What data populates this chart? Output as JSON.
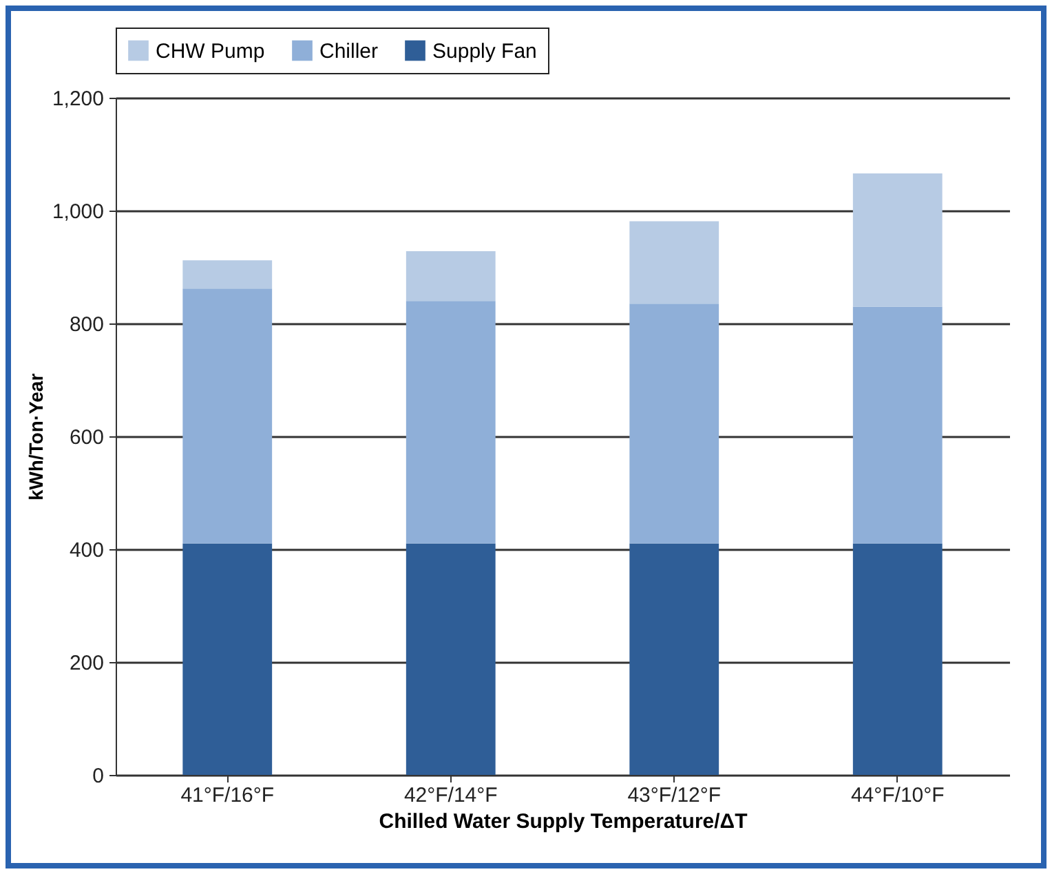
{
  "chart_data": {
    "type": "bar",
    "stacked": true,
    "xlabel": "Chilled Water Supply Temperature/ΔT",
    "ylabel": "kWh/Ton·Year",
    "categories": [
      "41°F/16°F",
      "42°F/14°F",
      "43°F/12°F",
      "44°F/10°F"
    ],
    "series": [
      {
        "name": "Supply Fan",
        "color": "#2f5e97",
        "values": [
          410,
          410,
          410,
          410
        ]
      },
      {
        "name": "Chiller",
        "color": "#8fafd8",
        "values": [
          452,
          430,
          425,
          420
        ]
      },
      {
        "name": "CHW Pump",
        "color": "#b7cbe4",
        "values": [
          50,
          88,
          146,
          236
        ]
      }
    ],
    "ylim": [
      0,
      1200
    ],
    "yticks": [
      0,
      200,
      400,
      600,
      800,
      {
        "value": 1000,
        "label": "1,000"
      },
      {
        "value": 1200,
        "label": "1,200"
      }
    ],
    "grid": "y",
    "legend": "top"
  }
}
